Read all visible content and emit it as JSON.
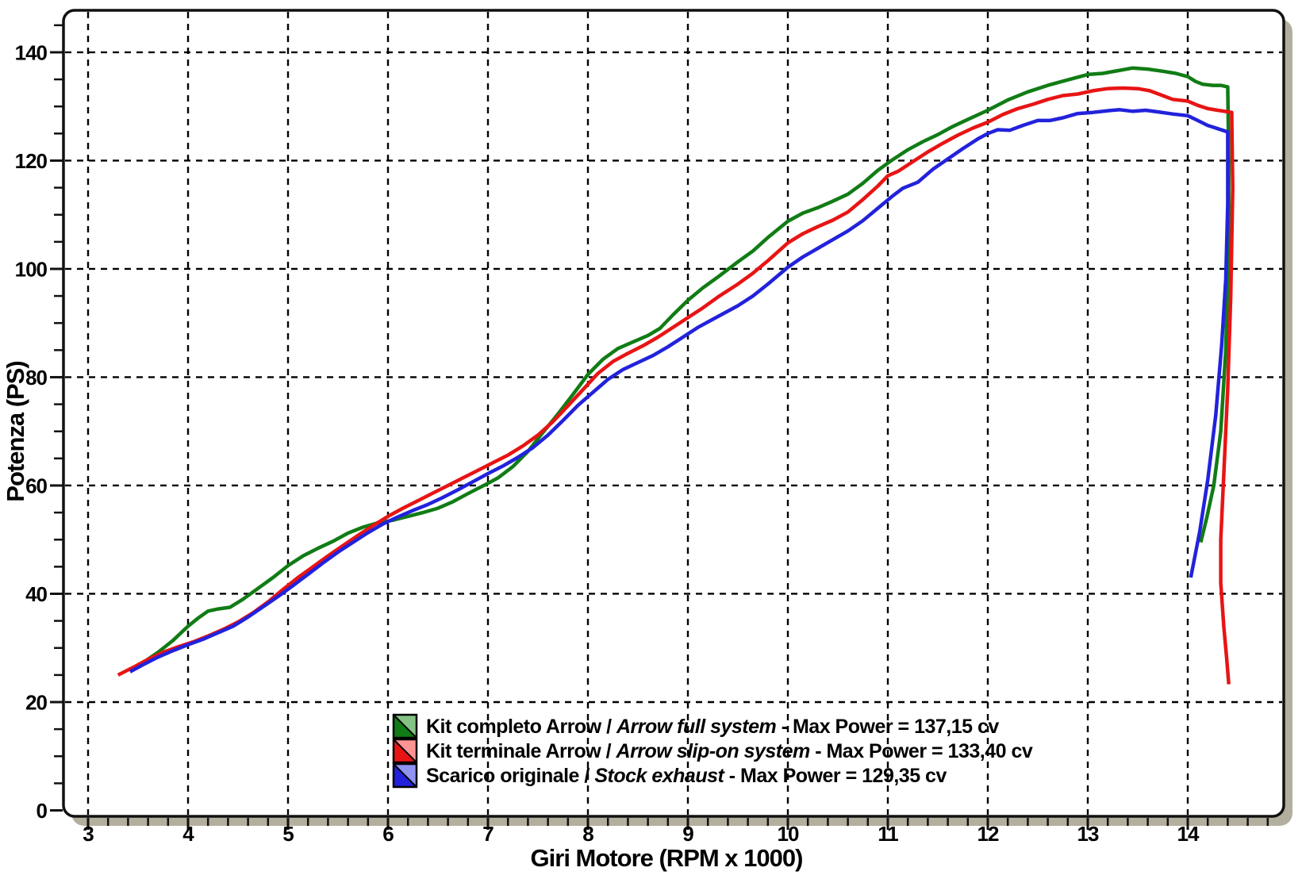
{
  "page": {
    "background": "#ffffff"
  },
  "frame": {
    "fill": "#ffffff",
    "border_color": "#111111",
    "shadow_color": "#b3af9e"
  },
  "chart_data": {
    "type": "line",
    "title": "",
    "x_axis": {
      "title": "Giri Motore (RPM x 1000)",
      "min": 2.77,
      "max": 14.96,
      "major_step": 1,
      "minor_step": 0.2,
      "tick_labels": [
        3,
        4,
        5,
        6,
        7,
        8,
        9,
        10,
        11,
        12,
        13,
        14
      ],
      "gridlines": [
        3,
        4,
        5,
        6,
        7,
        8,
        9,
        10,
        11,
        12,
        13,
        14
      ]
    },
    "y_axis": {
      "title": "Potenza (PS)",
      "min": 0,
      "max": 147.7,
      "major_step": 20,
      "minor_step": 5,
      "tick_labels": [
        0,
        20,
        40,
        60,
        80,
        100,
        120,
        140
      ],
      "gridlines": [
        20,
        40,
        60,
        80,
        100,
        120,
        140
      ]
    },
    "grid": {
      "style": "dashed",
      "color": "#000000"
    },
    "legend": {
      "position": "bottom-center-inside",
      "separator_slash": "/",
      "separator_dash": "-",
      "items": [
        {
          "id": "arrow-full-system",
          "name_it": "Kit completo Arrow",
          "name_en": "Arrow full system",
          "max_power": "Max Power = 137,15 cv",
          "color": "#117c15",
          "color_light": "#84c384"
        },
        {
          "id": "arrow-slip-on-system",
          "name_it": "Kit terminale Arrow",
          "name_en": "Arrow slip-on system",
          "max_power": "Max Power = 133,40 cv",
          "color": "#e81414",
          "color_light": "#ff9494"
        },
        {
          "id": "stock-exhaust",
          "name_it": "Scarico originale",
          "name_en": "Stock exhaust",
          "max_power": "Max Power = 129,35 cv",
          "color": "#2222dc",
          "color_light": "#8f93f2"
        }
      ]
    },
    "series": [
      {
        "id": "arrow-full-system",
        "name": "Kit completo Arrow / Arrow full system",
        "color": "#117c15",
        "max_power_cv": 137.15,
        "points": [
          [
            3.45,
            26.3
          ],
          [
            3.55,
            27.3
          ],
          [
            3.7,
            29.2
          ],
          [
            3.85,
            31.4
          ],
          [
            4.0,
            34.0
          ],
          [
            4.1,
            35.5
          ],
          [
            4.2,
            36.8
          ],
          [
            4.3,
            37.2
          ],
          [
            4.42,
            37.5
          ],
          [
            4.55,
            39.0
          ],
          [
            4.7,
            41.0
          ],
          [
            4.85,
            43.0
          ],
          [
            5.0,
            45.2
          ],
          [
            5.15,
            47.0
          ],
          [
            5.3,
            48.4
          ],
          [
            5.45,
            49.7
          ],
          [
            5.6,
            51.2
          ],
          [
            5.75,
            52.3
          ],
          [
            5.9,
            53.1
          ],
          [
            6.05,
            53.6
          ],
          [
            6.2,
            54.3
          ],
          [
            6.35,
            55.0
          ],
          [
            6.5,
            55.8
          ],
          [
            6.65,
            57.0
          ],
          [
            6.8,
            58.5
          ],
          [
            7.0,
            60.4
          ],
          [
            7.1,
            61.4
          ],
          [
            7.25,
            63.5
          ],
          [
            7.4,
            66.3
          ],
          [
            7.55,
            69.8
          ],
          [
            7.7,
            73.2
          ],
          [
            7.85,
            76.8
          ],
          [
            8.0,
            80.5
          ],
          [
            8.15,
            83.3
          ],
          [
            8.3,
            85.3
          ],
          [
            8.45,
            86.5
          ],
          [
            8.6,
            87.7
          ],
          [
            8.72,
            89.0
          ],
          [
            8.85,
            91.5
          ],
          [
            9.0,
            94.2
          ],
          [
            9.15,
            96.5
          ],
          [
            9.3,
            98.5
          ],
          [
            9.5,
            101.3
          ],
          [
            9.65,
            103.3
          ],
          [
            9.8,
            105.8
          ],
          [
            10.0,
            108.8
          ],
          [
            10.15,
            110.3
          ],
          [
            10.3,
            111.3
          ],
          [
            10.45,
            112.5
          ],
          [
            10.6,
            113.8
          ],
          [
            10.75,
            115.8
          ],
          [
            10.9,
            118.2
          ],
          [
            11.05,
            120.2
          ],
          [
            11.2,
            122.0
          ],
          [
            11.35,
            123.5
          ],
          [
            11.5,
            124.8
          ],
          [
            11.65,
            126.3
          ],
          [
            11.8,
            127.6
          ],
          [
            12.0,
            129.3
          ],
          [
            12.2,
            131.2
          ],
          [
            12.4,
            132.7
          ],
          [
            12.6,
            133.9
          ],
          [
            12.8,
            134.9
          ],
          [
            13.0,
            135.9
          ],
          [
            13.15,
            136.1
          ],
          [
            13.3,
            136.6
          ],
          [
            13.45,
            137.1
          ],
          [
            13.6,
            136.9
          ],
          [
            13.75,
            136.5
          ],
          [
            13.88,
            136.1
          ],
          [
            14.0,
            135.5
          ],
          [
            14.08,
            134.6
          ],
          [
            14.15,
            134.1
          ],
          [
            14.25,
            133.9
          ],
          [
            14.33,
            133.9
          ],
          [
            14.4,
            133.6
          ],
          [
            14.41,
            120.0
          ],
          [
            14.41,
            105.0
          ],
          [
            14.38,
            85.0
          ],
          [
            14.33,
            70.0
          ],
          [
            14.26,
            60.0
          ],
          [
            14.19,
            54.0
          ],
          [
            14.13,
            49.5
          ]
        ]
      },
      {
        "id": "arrow-slip-on-system",
        "name": "Kit terminale Arrow / Arrow slip-on system",
        "color": "#e81414",
        "max_power_cv": 133.4,
        "points": [
          [
            3.3,
            25.0
          ],
          [
            3.45,
            26.4
          ],
          [
            3.6,
            27.9
          ],
          [
            3.75,
            29.2
          ],
          [
            3.9,
            30.2
          ],
          [
            4.05,
            31.1
          ],
          [
            4.2,
            32.2
          ],
          [
            4.35,
            33.4
          ],
          [
            4.5,
            34.8
          ],
          [
            4.65,
            36.5
          ],
          [
            4.8,
            38.5
          ],
          [
            4.95,
            40.8
          ],
          [
            5.1,
            43.0
          ],
          [
            5.25,
            45.0
          ],
          [
            5.4,
            47.0
          ],
          [
            5.55,
            48.9
          ],
          [
            5.7,
            50.8
          ],
          [
            5.85,
            52.6
          ],
          [
            6.0,
            54.3
          ],
          [
            6.15,
            55.8
          ],
          [
            6.3,
            57.2
          ],
          [
            6.45,
            58.6
          ],
          [
            6.6,
            60.0
          ],
          [
            6.75,
            61.4
          ],
          [
            6.9,
            62.8
          ],
          [
            7.05,
            64.2
          ],
          [
            7.2,
            65.6
          ],
          [
            7.35,
            67.3
          ],
          [
            7.5,
            69.3
          ],
          [
            7.65,
            71.8
          ],
          [
            7.8,
            74.7
          ],
          [
            7.95,
            77.7
          ],
          [
            8.1,
            80.7
          ],
          [
            8.25,
            82.9
          ],
          [
            8.4,
            84.4
          ],
          [
            8.55,
            85.8
          ],
          [
            8.7,
            87.4
          ],
          [
            8.85,
            89.2
          ],
          [
            9.0,
            91.0
          ],
          [
            9.15,
            92.8
          ],
          [
            9.3,
            94.8
          ],
          [
            9.5,
            97.2
          ],
          [
            9.65,
            99.2
          ],
          [
            9.8,
            101.5
          ],
          [
            10.0,
            104.8
          ],
          [
            10.15,
            106.5
          ],
          [
            10.3,
            107.8
          ],
          [
            10.45,
            109.0
          ],
          [
            10.6,
            110.5
          ],
          [
            10.75,
            112.8
          ],
          [
            10.9,
            115.3
          ],
          [
            11.0,
            117.2
          ],
          [
            11.1,
            118.0
          ],
          [
            11.25,
            119.8
          ],
          [
            11.4,
            121.6
          ],
          [
            11.55,
            123.2
          ],
          [
            11.7,
            124.7
          ],
          [
            11.85,
            126.0
          ],
          [
            12.0,
            127.1
          ],
          [
            12.15,
            128.5
          ],
          [
            12.3,
            129.6
          ],
          [
            12.45,
            130.4
          ],
          [
            12.6,
            131.3
          ],
          [
            12.75,
            132.0
          ],
          [
            12.9,
            132.3
          ],
          [
            13.05,
            132.9
          ],
          [
            13.2,
            133.3
          ],
          [
            13.35,
            133.4
          ],
          [
            13.5,
            133.3
          ],
          [
            13.62,
            132.9
          ],
          [
            13.75,
            132.0
          ],
          [
            13.85,
            131.3
          ],
          [
            14.0,
            131.0
          ],
          [
            14.1,
            130.2
          ],
          [
            14.2,
            129.6
          ],
          [
            14.3,
            129.3
          ],
          [
            14.44,
            128.9
          ],
          [
            14.45,
            115.0
          ],
          [
            14.43,
            95.0
          ],
          [
            14.4,
            78.0
          ],
          [
            14.36,
            62.0
          ],
          [
            14.33,
            50.0
          ],
          [
            14.33,
            42.0
          ],
          [
            14.36,
            34.0
          ],
          [
            14.39,
            28.0
          ],
          [
            14.41,
            23.3
          ]
        ]
      },
      {
        "id": "stock-exhaust",
        "name": "Scarico originale / Stock exhaust",
        "color": "#2222dc",
        "max_power_cv": 129.35,
        "points": [
          [
            3.42,
            25.6
          ],
          [
            3.55,
            26.9
          ],
          [
            3.7,
            28.3
          ],
          [
            3.85,
            29.5
          ],
          [
            4.0,
            30.6
          ],
          [
            4.15,
            31.6
          ],
          [
            4.3,
            32.8
          ],
          [
            4.45,
            34.0
          ],
          [
            4.6,
            35.7
          ],
          [
            4.75,
            37.6
          ],
          [
            4.9,
            39.5
          ],
          [
            5.05,
            41.5
          ],
          [
            5.2,
            43.6
          ],
          [
            5.35,
            45.7
          ],
          [
            5.5,
            47.7
          ],
          [
            5.65,
            49.5
          ],
          [
            5.8,
            51.3
          ],
          [
            5.95,
            52.9
          ],
          [
            6.1,
            54.2
          ],
          [
            6.25,
            55.4
          ],
          [
            6.4,
            56.5
          ],
          [
            6.55,
            57.8
          ],
          [
            6.7,
            59.2
          ],
          [
            6.85,
            60.7
          ],
          [
            7.0,
            62.2
          ],
          [
            7.15,
            63.6
          ],
          [
            7.3,
            65.2
          ],
          [
            7.45,
            67.0
          ],
          [
            7.6,
            69.3
          ],
          [
            7.75,
            72.0
          ],
          [
            7.9,
            74.8
          ],
          [
            8.05,
            77.2
          ],
          [
            8.2,
            79.6
          ],
          [
            8.35,
            81.4
          ],
          [
            8.5,
            82.7
          ],
          [
            8.65,
            84.0
          ],
          [
            8.8,
            85.6
          ],
          [
            8.95,
            87.4
          ],
          [
            9.1,
            89.2
          ],
          [
            9.3,
            91.2
          ],
          [
            9.5,
            93.2
          ],
          [
            9.65,
            95.0
          ],
          [
            9.8,
            97.2
          ],
          [
            10.0,
            100.3
          ],
          [
            10.15,
            102.2
          ],
          [
            10.3,
            103.8
          ],
          [
            10.45,
            105.4
          ],
          [
            10.6,
            107.0
          ],
          [
            10.75,
            108.9
          ],
          [
            10.9,
            111.2
          ],
          [
            11.05,
            113.5
          ],
          [
            11.15,
            114.9
          ],
          [
            11.3,
            116.0
          ],
          [
            11.45,
            118.4
          ],
          [
            11.6,
            120.3
          ],
          [
            11.75,
            122.2
          ],
          [
            11.9,
            124.0
          ],
          [
            12.0,
            125.0
          ],
          [
            12.1,
            125.7
          ],
          [
            12.22,
            125.6
          ],
          [
            12.35,
            126.5
          ],
          [
            12.5,
            127.4
          ],
          [
            12.62,
            127.4
          ],
          [
            12.75,
            127.9
          ],
          [
            12.9,
            128.7
          ],
          [
            13.05,
            128.9
          ],
          [
            13.2,
            129.2
          ],
          [
            13.32,
            129.4
          ],
          [
            13.45,
            129.1
          ],
          [
            13.58,
            129.3
          ],
          [
            13.7,
            129.0
          ],
          [
            13.85,
            128.6
          ],
          [
            14.0,
            128.3
          ],
          [
            14.1,
            127.4
          ],
          [
            14.2,
            126.5
          ],
          [
            14.3,
            125.9
          ],
          [
            14.4,
            125.3
          ],
          [
            14.4,
            112.0
          ],
          [
            14.38,
            98.0
          ],
          [
            14.34,
            86.0
          ],
          [
            14.28,
            73.0
          ],
          [
            14.2,
            61.0
          ],
          [
            14.12,
            51.5
          ],
          [
            14.03,
            43.0
          ]
        ]
      }
    ]
  }
}
